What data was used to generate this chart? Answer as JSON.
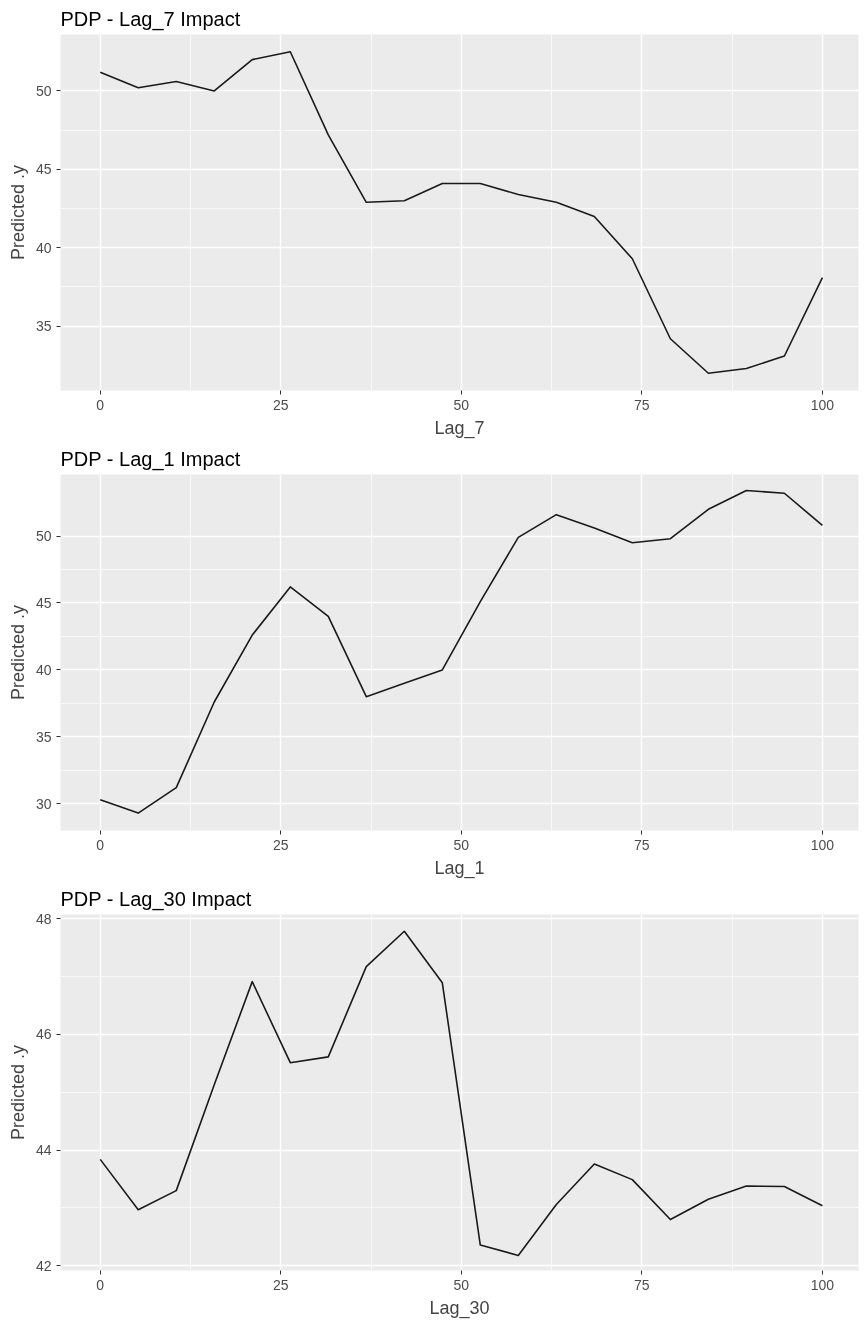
{
  "chart_data": [
    {
      "type": "line",
      "title": "PDP - Lag_7 Impact",
      "xlabel": "Lag_7",
      "ylabel": "Predicted .y",
      "color": "#1a1a1a",
      "grid": true,
      "x": [
        0,
        5.26,
        10.53,
        15.79,
        21.05,
        26.32,
        31.58,
        36.84,
        42.11,
        47.37,
        52.63,
        57.89,
        63.16,
        68.42,
        73.68,
        78.95,
        84.21,
        89.47,
        94.74,
        100
      ],
      "values": [
        51.2,
        50.2,
        50.6,
        50.0,
        52.0,
        52.5,
        47.2,
        42.9,
        43.0,
        44.1,
        44.1,
        43.4,
        42.9,
        42.0,
        39.3,
        34.2,
        32.0,
        32.3,
        33.1,
        38.1
      ],
      "xlim": [
        -5.5,
        105
      ],
      "ylim": [
        30.9,
        53.6
      ],
      "xticks": [
        0,
        25,
        50,
        75,
        100
      ],
      "yticks": [
        35,
        40,
        45,
        50
      ]
    },
    {
      "type": "line",
      "title": "PDP - Lag_1 Impact",
      "xlabel": "Lag_1",
      "ylabel": "Predicted .y",
      "color": "#1a1a1a",
      "grid": true,
      "x": [
        0,
        5.26,
        10.53,
        15.79,
        21.05,
        26.32,
        31.58,
        36.84,
        42.11,
        47.37,
        52.63,
        57.89,
        63.16,
        68.42,
        73.68,
        78.95,
        84.21,
        89.47,
        94.74,
        100
      ],
      "values": [
        30.3,
        29.3,
        31.2,
        37.6,
        42.6,
        46.2,
        44.0,
        38.0,
        39.0,
        40.0,
        45.1,
        49.9,
        51.6,
        50.6,
        49.5,
        49.8,
        52.0,
        53.4,
        53.2,
        50.8
      ],
      "xlim": [
        -5.5,
        105
      ],
      "ylim": [
        28.0,
        54.6
      ],
      "xticks": [
        0,
        25,
        50,
        75,
        100
      ],
      "yticks": [
        30,
        35,
        40,
        45,
        50
      ]
    },
    {
      "type": "line",
      "title": "PDP - Lag_30 Impact",
      "xlabel": "Lag_30",
      "ylabel": "Predicted .y",
      "color": "#1a1a1a",
      "grid": true,
      "x": [
        0,
        5.26,
        10.53,
        15.79,
        21.05,
        26.32,
        31.58,
        36.84,
        42.11,
        47.37,
        52.63,
        57.89,
        63.16,
        68.42,
        73.68,
        78.95,
        84.21,
        89.47,
        94.74,
        100
      ],
      "values": [
        43.84,
        42.97,
        43.3,
        45.13,
        46.91,
        45.51,
        45.61,
        47.17,
        47.78,
        46.89,
        42.36,
        42.18,
        43.06,
        43.76,
        43.49,
        42.8,
        43.15,
        43.38,
        43.37,
        43.04
      ],
      "xlim": [
        -5.5,
        105
      ],
      "ylim": [
        41.92,
        48.07
      ],
      "xticks": [
        0,
        25,
        50,
        75,
        100
      ],
      "yticks": [
        42,
        44,
        46,
        48
      ]
    }
  ]
}
